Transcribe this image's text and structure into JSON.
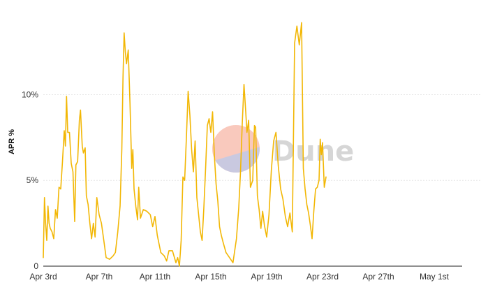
{
  "watermark": {
    "text": "Dune",
    "colors": {
      "top": "#f9c9bd",
      "bottom": "#c9c9e0",
      "text": "#cfcfcf"
    }
  },
  "chart_data": {
    "type": "line",
    "title": "",
    "xlabel": "",
    "ylabel": "APR %",
    "y_tick_values": [
      0,
      5,
      10
    ],
    "y_tick_labels": [
      "0",
      "5%",
      "10%"
    ],
    "ylim": [
      0,
      14.5
    ],
    "xlim": [
      "2024-04-03",
      "2024-05-03"
    ],
    "x_ticks": [
      {
        "date": "2024-04-03",
        "label": "Apr 3rd"
      },
      {
        "date": "2024-04-07",
        "label": "Apr 7th"
      },
      {
        "date": "2024-04-11",
        "label": "Apr 11th"
      },
      {
        "date": "2024-04-15",
        "label": "Apr 15th"
      },
      {
        "date": "2024-04-19",
        "label": "Apr 19th"
      },
      {
        "date": "2024-04-23",
        "label": "Apr 23rd"
      },
      {
        "date": "2024-04-27",
        "label": "Apr 27th"
      },
      {
        "date": "2024-05-01",
        "label": "May 1st"
      }
    ],
    "grid": true,
    "legend": "none",
    "series": [
      {
        "color": "#f2b705",
        "points": [
          [
            "2024-04-03T00:00",
            0.5
          ],
          [
            "2024-04-03T02:00",
            4.0
          ],
          [
            "2024-04-03T04:00",
            2.5
          ],
          [
            "2024-04-03T06:00",
            1.5
          ],
          [
            "2024-04-03T08:00",
            3.5
          ],
          [
            "2024-04-03T10:00",
            2.5
          ],
          [
            "2024-04-03T12:00",
            2.2
          ],
          [
            "2024-04-03T15:00",
            2.0
          ],
          [
            "2024-04-03T18:00",
            1.6
          ],
          [
            "2024-04-03T21:00",
            3.3
          ],
          [
            "2024-04-04T00:00",
            2.8
          ],
          [
            "2024-04-04T03:00",
            4.6
          ],
          [
            "2024-04-04T06:00",
            4.5
          ],
          [
            "2024-04-04T09:00",
            6.1
          ],
          [
            "2024-04-04T12:00",
            7.9
          ],
          [
            "2024-04-04T14:00",
            7.0
          ],
          [
            "2024-04-04T16:00",
            9.9
          ],
          [
            "2024-04-04T18:00",
            7.8
          ],
          [
            "2024-04-04T21:00",
            7.8
          ],
          [
            "2024-04-05T00:00",
            6.0
          ],
          [
            "2024-04-05T03:00",
            5.5
          ],
          [
            "2024-04-05T06:00",
            2.6
          ],
          [
            "2024-04-05T08:00",
            5.9
          ],
          [
            "2024-04-05T11:00",
            6.1
          ],
          [
            "2024-04-05T14:00",
            8.5
          ],
          [
            "2024-04-05T16:00",
            9.1
          ],
          [
            "2024-04-05T19:00",
            7.0
          ],
          [
            "2024-04-05T21:00",
            6.6
          ],
          [
            "2024-04-06T00:00",
            6.9
          ],
          [
            "2024-04-06T02:00",
            4.1
          ],
          [
            "2024-04-06T05:00",
            3.6
          ],
          [
            "2024-04-06T08:00",
            2.5
          ],
          [
            "2024-04-06T11:00",
            1.6
          ],
          [
            "2024-04-06T14:00",
            2.5
          ],
          [
            "2024-04-06T17:00",
            1.7
          ],
          [
            "2024-04-06T20:00",
            4.0
          ],
          [
            "2024-04-07T00:00",
            3.0
          ],
          [
            "2024-04-07T04:00",
            2.5
          ],
          [
            "2024-04-07T08:00",
            1.5
          ],
          [
            "2024-04-07T12:00",
            0.5
          ],
          [
            "2024-04-07T18:00",
            0.4
          ],
          [
            "2024-04-08T00:00",
            0.6
          ],
          [
            "2024-04-08T04:00",
            0.8
          ],
          [
            "2024-04-08T08:00",
            2.0
          ],
          [
            "2024-04-08T12:00",
            3.5
          ],
          [
            "2024-04-08T15:00",
            6.8
          ],
          [
            "2024-04-08T17:00",
            11.0
          ],
          [
            "2024-04-08T19:00",
            13.6
          ],
          [
            "2024-04-08T21:00",
            12.5
          ],
          [
            "2024-04-08T23:00",
            11.8
          ],
          [
            "2024-04-09T02:00",
            12.6
          ],
          [
            "2024-04-09T05:00",
            9.5
          ],
          [
            "2024-04-09T08:00",
            5.7
          ],
          [
            "2024-04-09T10:00",
            6.8
          ],
          [
            "2024-04-09T12:00",
            4.5
          ],
          [
            "2024-04-09T15:00",
            3.5
          ],
          [
            "2024-04-09T18:00",
            2.7
          ],
          [
            "2024-04-09T20:00",
            4.6
          ],
          [
            "2024-04-09T23:00",
            2.8
          ],
          [
            "2024-04-10T04:00",
            3.3
          ],
          [
            "2024-04-10T10:00",
            3.2
          ],
          [
            "2024-04-10T16:00",
            3.0
          ],
          [
            "2024-04-10T20:00",
            2.3
          ],
          [
            "2024-04-11T00:00",
            2.9
          ],
          [
            "2024-04-11T04:00",
            1.8
          ],
          [
            "2024-04-11T10:00",
            0.8
          ],
          [
            "2024-04-11T16:00",
            0.6
          ],
          [
            "2024-04-11T20:00",
            0.3
          ],
          [
            "2024-04-12T00:00",
            0.9
          ],
          [
            "2024-04-12T06:00",
            0.9
          ],
          [
            "2024-04-12T12:00",
            0.2
          ],
          [
            "2024-04-12T15:00",
            0.5
          ],
          [
            "2024-04-12T18:00",
            0.0
          ],
          [
            "2024-04-12T21:00",
            1.5
          ],
          [
            "2024-04-13T00:00",
            5.2
          ],
          [
            "2024-04-13T03:00",
            5.0
          ],
          [
            "2024-04-13T06:00",
            7.5
          ],
          [
            "2024-04-13T09:00",
            10.2
          ],
          [
            "2024-04-13T12:00",
            8.8
          ],
          [
            "2024-04-13T15:00",
            6.8
          ],
          [
            "2024-04-13T18:00",
            5.5
          ],
          [
            "2024-04-13T21:00",
            7.3
          ],
          [
            "2024-04-14T00:00",
            4.0
          ],
          [
            "2024-04-14T03:00",
            3.0
          ],
          [
            "2024-04-14T06:00",
            2.0
          ],
          [
            "2024-04-14T09:00",
            1.5
          ],
          [
            "2024-04-14T12:00",
            3.4
          ],
          [
            "2024-04-14T15:00",
            5.7
          ],
          [
            "2024-04-14T18:00",
            8.2
          ],
          [
            "2024-04-14T21:00",
            8.6
          ],
          [
            "2024-04-15T00:00",
            7.8
          ],
          [
            "2024-04-15T03:00",
            9.0
          ],
          [
            "2024-04-15T06:00",
            6.5
          ],
          [
            "2024-04-15T09:00",
            4.8
          ],
          [
            "2024-04-15T12:00",
            3.8
          ],
          [
            "2024-04-15T15:00",
            2.3
          ],
          [
            "2024-04-15T18:00",
            1.8
          ],
          [
            "2024-04-15T21:00",
            1.4
          ],
          [
            "2024-04-16T02:00",
            0.8
          ],
          [
            "2024-04-16T08:00",
            0.5
          ],
          [
            "2024-04-16T14:00",
            0.2
          ],
          [
            "2024-04-16T20:00",
            1.6
          ],
          [
            "2024-04-17T00:00",
            3.4
          ],
          [
            "2024-04-17T03:00",
            5.5
          ],
          [
            "2024-04-17T06:00",
            8.3
          ],
          [
            "2024-04-17T09:00",
            10.6
          ],
          [
            "2024-04-17T12:00",
            9.0
          ],
          [
            "2024-04-17T14:00",
            7.8
          ],
          [
            "2024-04-17T17:00",
            8.5
          ],
          [
            "2024-04-17T20:00",
            4.6
          ],
          [
            "2024-04-18T00:00",
            5.0
          ],
          [
            "2024-04-18T03:00",
            8.2
          ],
          [
            "2024-04-18T05:00",
            8.1
          ],
          [
            "2024-04-18T08:00",
            4.1
          ],
          [
            "2024-04-18T11:00",
            3.3
          ],
          [
            "2024-04-18T14:00",
            2.2
          ],
          [
            "2024-04-18T17:00",
            3.2
          ],
          [
            "2024-04-18T20:00",
            2.4
          ],
          [
            "2024-04-19T00:00",
            1.7
          ],
          [
            "2024-04-19T04:00",
            3.0
          ],
          [
            "2024-04-19T08:00",
            5.6
          ],
          [
            "2024-04-19T12:00",
            7.3
          ],
          [
            "2024-04-19T16:00",
            7.8
          ],
          [
            "2024-04-19T20:00",
            5.8
          ],
          [
            "2024-04-20T00:00",
            4.5
          ],
          [
            "2024-04-20T04:00",
            3.9
          ],
          [
            "2024-04-20T08:00",
            2.9
          ],
          [
            "2024-04-20T12:00",
            2.3
          ],
          [
            "2024-04-20T16:00",
            3.1
          ],
          [
            "2024-04-20T20:00",
            2.0
          ],
          [
            "2024-04-21T00:00",
            13.0
          ],
          [
            "2024-04-21T04:00",
            14.0
          ],
          [
            "2024-04-21T08:00",
            12.9
          ],
          [
            "2024-04-21T12:00",
            14.2
          ],
          [
            "2024-04-21T15:00",
            5.7
          ],
          [
            "2024-04-21T18:00",
            4.5
          ],
          [
            "2024-04-21T21:00",
            3.6
          ],
          [
            "2024-04-22T00:00",
            3.1
          ],
          [
            "2024-04-22T03:00",
            2.4
          ],
          [
            "2024-04-22T06:00",
            1.6
          ],
          [
            "2024-04-22T09:00",
            3.2
          ],
          [
            "2024-04-22T12:00",
            4.5
          ],
          [
            "2024-04-22T15:00",
            4.6
          ],
          [
            "2024-04-22T18:00",
            5.0
          ],
          [
            "2024-04-22T20:00",
            7.4
          ],
          [
            "2024-04-22T22:00",
            6.5
          ],
          [
            "2024-04-23T00:00",
            7.2
          ],
          [
            "2024-04-23T03:00",
            4.6
          ],
          [
            "2024-04-23T06:00",
            5.2
          ]
        ]
      }
    ]
  }
}
